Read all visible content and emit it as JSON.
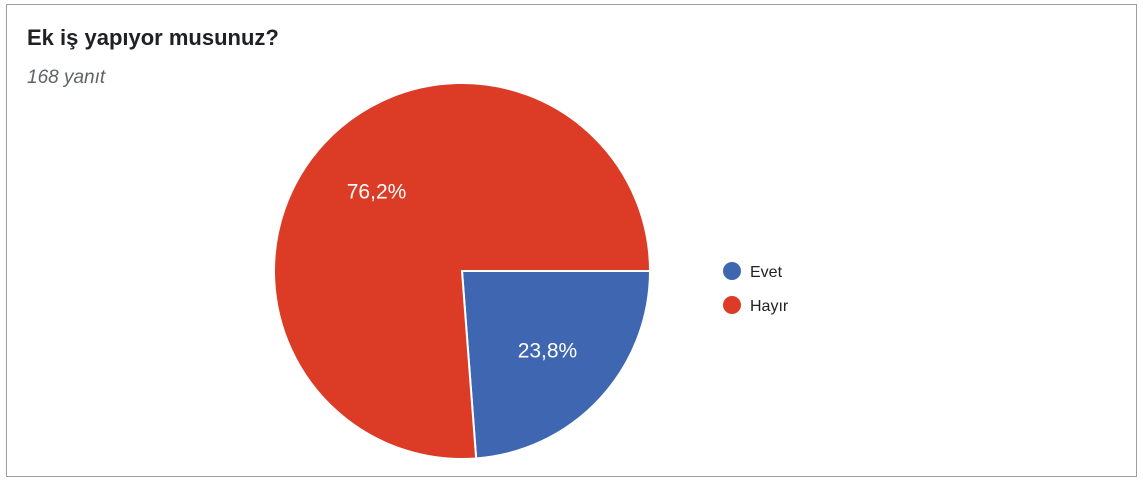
{
  "card": {
    "title": "Ek iş yapıyor musunuz?",
    "subtitle": "168 yanıt"
  },
  "chart_data": {
    "type": "pie",
    "categories": [
      "Evet",
      "Hayır"
    ],
    "values": [
      23.8,
      76.2
    ],
    "labels": [
      "23,8%",
      "76,2%"
    ],
    "colors": [
      "#3f67b1",
      "#dc3b26"
    ],
    "legend": "right"
  }
}
